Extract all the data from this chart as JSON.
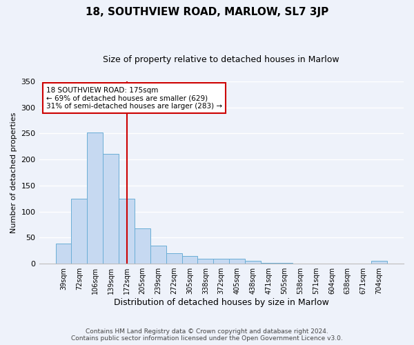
{
  "title": "18, SOUTHVIEW ROAD, MARLOW, SL7 3JP",
  "subtitle": "Size of property relative to detached houses in Marlow",
  "xlabel": "Distribution of detached houses by size in Marlow",
  "ylabel": "Number of detached properties",
  "bar_labels": [
    "39sqm",
    "72sqm",
    "106sqm",
    "139sqm",
    "172sqm",
    "205sqm",
    "239sqm",
    "272sqm",
    "305sqm",
    "338sqm",
    "372sqm",
    "405sqm",
    "438sqm",
    "471sqm",
    "505sqm",
    "538sqm",
    "571sqm",
    "604sqm",
    "638sqm",
    "671sqm",
    "704sqm"
  ],
  "bar_values": [
    38,
    125,
    252,
    211,
    125,
    67,
    35,
    20,
    15,
    10,
    10,
    10,
    5,
    2,
    1,
    0,
    0,
    0,
    0,
    0,
    5
  ],
  "bar_color": "#c6d9f1",
  "bar_edge_color": "#6aaed6",
  "vline_x_index": 4,
  "vline_color": "#cc0000",
  "ylim": [
    0,
    350
  ],
  "yticks": [
    0,
    50,
    100,
    150,
    200,
    250,
    300,
    350
  ],
  "annotation_lines": [
    "18 SOUTHVIEW ROAD: 175sqm",
    "← 69% of detached houses are smaller (629)",
    "31% of semi-detached houses are larger (283) →"
  ],
  "annotation_box_color": "#ffffff",
  "annotation_box_edge_color": "#cc0000",
  "footer_lines": [
    "Contains HM Land Registry data © Crown copyright and database right 2024.",
    "Contains public sector information licensed under the Open Government Licence v3.0."
  ],
  "background_color": "#eef2fa",
  "plot_background_color": "#eef2fa",
  "grid_color": "#ffffff",
  "title_fontsize": 11,
  "subtitle_fontsize": 9,
  "ylabel_fontsize": 8,
  "xlabel_fontsize": 9,
  "tick_fontsize": 7,
  "footer_fontsize": 6.5
}
